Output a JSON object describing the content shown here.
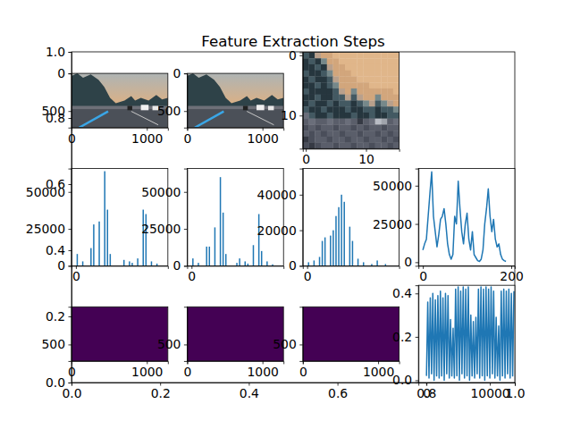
{
  "chart_data": [
    {
      "type": "axes",
      "title": "Feature Extraction Steps",
      "xlim": [
        0,
        1
      ],
      "ylim": [
        0,
        1
      ],
      "xticks": [
        {
          "value": 0,
          "label": "0.0"
        },
        {
          "value": 0.2,
          "label": "0.2"
        },
        {
          "value": 0.4,
          "label": "0.4"
        },
        {
          "value": 0.6,
          "label": "0.6"
        },
        {
          "value": 0.8,
          "label": "0.8"
        },
        {
          "value": 1,
          "label": "1.0"
        }
      ],
      "yticks": [
        {
          "value": 0,
          "label": "0.0"
        },
        {
          "value": 0.2,
          "label": "0.2"
        },
        {
          "value": 0.4,
          "label": "0.4"
        },
        {
          "value": 0.6,
          "label": "0.6"
        },
        {
          "value": 0.8,
          "label": "0.8"
        },
        {
          "value": 1,
          "label": "1.0"
        }
      ]
    },
    {
      "type": "image",
      "xlim": [
        -0.5,
        1279.5
      ],
      "ylim": [
        719.5,
        -0.5
      ],
      "xticks": [
        0,
        1000
      ],
      "yticks": [
        0,
        500
      ]
    },
    {
      "type": "image",
      "xlim": [
        -0.5,
        1279.5
      ],
      "ylim": [
        719.5,
        -0.5
      ],
      "xticks": [
        0,
        1000
      ],
      "yticks": [
        0,
        500
      ]
    },
    {
      "type": "heatmap",
      "xlim": [
        -0.5,
        15.5
      ],
      "ylim": [
        15.5,
        -0.5
      ],
      "xticks": [
        0,
        10
      ],
      "yticks": [
        0,
        10
      ],
      "cells": [
        [
          "#435962",
          "#26363e",
          "#b8a08c",
          "#d2a67c",
          "#d2a67c",
          "#e0b68a",
          "#e0b68a",
          "#e0b68a",
          "#e0b68a",
          "#e0b68a",
          "#e0b68a",
          "#e0b68a",
          "#e0b68a",
          "#e0b68a",
          "#e0b68a",
          "#e0b68a"
        ],
        [
          "#26363e",
          "#435962",
          "#26363e",
          "#76888a",
          "#d2a67c",
          "#d2a67c",
          "#e0b68a",
          "#e0b68a",
          "#e0b68a",
          "#e0b68a",
          "#e0b68a",
          "#e0b68a",
          "#e0b68a",
          "#e0b68a",
          "#e0b68a",
          "#e0b68a"
        ],
        [
          "#26363e",
          "#26363e",
          "#435962",
          "#26363e",
          "#b8a08c",
          "#d2a67c",
          "#d2a67c",
          "#e0b68a",
          "#e0b68a",
          "#e0b68a",
          "#e0b68a",
          "#e0b68a",
          "#e0b68a",
          "#e0b68a",
          "#e0b68a",
          "#e0b68a"
        ],
        [
          "#435962",
          "#26363e",
          "#26363e",
          "#435962",
          "#76888a",
          "#d2a67c",
          "#d2a67c",
          "#d2a67c",
          "#e0b68a",
          "#e0b68a",
          "#e0b68a",
          "#e0b68a",
          "#e0b68a",
          "#e0b68a",
          "#e0b68a",
          "#e0b68a"
        ],
        [
          "#26363e",
          "#435962",
          "#26363e",
          "#26363e",
          "#435962",
          "#b8a08c",
          "#d2a67c",
          "#d2a67c",
          "#d2a67c",
          "#e0b68a",
          "#e0b68a",
          "#e0b68a",
          "#e0b68a",
          "#e0b68a",
          "#e0b68a",
          "#e0b68a"
        ],
        [
          "#26363e",
          "#26363e",
          "#435962",
          "#26363e",
          "#435962",
          "#76888a",
          "#d2a67c",
          "#d2a67c",
          "#d2a67c",
          "#d2a67c",
          "#d2a67c",
          "#e0b68a",
          "#e0b68a",
          "#e0b68a",
          "#e0b68a",
          "#e0b68a"
        ],
        [
          "#435962",
          "#26363e",
          "#26363e",
          "#26363e",
          "#26363e",
          "#435962",
          "#b8a08c",
          "#d2a67c",
          "#76888a",
          "#d2a67c",
          "#d2a67c",
          "#d2a67c",
          "#d2a67c",
          "#d2a67c",
          "#d2a67c",
          "#e0b68a"
        ],
        [
          "#26363e",
          "#26363e",
          "#435962",
          "#26363e",
          "#26363e",
          "#435962",
          "#435962",
          "#b8a08c",
          "#435962",
          "#b8a08c",
          "#d2a67c",
          "#d2a67c",
          "#76888a",
          "#d2a67c",
          "#d2a67c",
          "#d2a67c"
        ],
        [
          "#26363e",
          "#435962",
          "#26363e",
          "#26363e",
          "#435962",
          "#26363e",
          "#435962",
          "#435962",
          "#26363e",
          "#435962",
          "#76888a",
          "#b8a08c",
          "#435962",
          "#76888a",
          "#b8a08c",
          "#d2a67c"
        ],
        [
          "#435962",
          "#26363e",
          "#26363e",
          "#435962",
          "#26363e",
          "#26363e",
          "#26363e",
          "#435962",
          "#26363e",
          "#26363e",
          "#435962",
          "#435962",
          "#26363e",
          "#435962",
          "#435962",
          "#76888a"
        ],
        [
          "#6a6e7a",
          "#435962",
          "#26363e",
          "#26363e",
          "#435962",
          "#26363e",
          "#26363e",
          "#26363e",
          "#435962",
          "#26363e",
          "#26363e",
          "#435962",
          "#26363e",
          "#26363e",
          "#435962",
          "#435962"
        ],
        [
          "#5a5e6a",
          "#6a6e7a",
          "#5a5e6a",
          "#5a5e6a",
          "#6a6e7a",
          "#5a5e6a",
          "#5a5e6a",
          "#6a6e7a",
          "#5a5e6a",
          "#363a44",
          "#5a5e6a",
          "#6a6e7a",
          "#b8bcc4",
          "#a0a4ac",
          "#5a5e6a",
          "#6a6e7a"
        ],
        [
          "#4a4e5a",
          "#5a5e6a",
          "#4a4e5a",
          "#5a5e6a",
          "#5a5e6a",
          "#4a4e5a",
          "#5a5e6a",
          "#5a5e6a",
          "#4a4e5a",
          "#5a5e6a",
          "#4a4e5a",
          "#5a5e6a",
          "#5a5e6a",
          "#4a4e5a",
          "#5a5e6a",
          "#5a5e6a"
        ],
        [
          "#5a5e6a",
          "#4a4e5a",
          "#5a5e6a",
          "#4a4e5a",
          "#5a5e6a",
          "#5a5e6a",
          "#4a4e5a",
          "#5a5e6a",
          "#5a5e6a",
          "#4a4e5a",
          "#5a5e6a",
          "#5a5e6a",
          "#4a4e5a",
          "#5a5e6a",
          "#4a4e5a",
          "#5a5e6a"
        ],
        [
          "#363a44",
          "#4a4e5a",
          "#5a5e6a",
          "#5a5e6a",
          "#4a4e5a",
          "#5a5e6a",
          "#5a5e6a",
          "#4a4e5a",
          "#5a5e6a",
          "#5a5e6a",
          "#4a4e5a",
          "#5a5e6a",
          "#5a5e6a",
          "#4a4e5a",
          "#5a5e6a",
          "#4a4e5a"
        ],
        [
          "#4a4e5a",
          "#363a44",
          "#4a4e5a",
          "#5a5e6a",
          "#5a5e6a",
          "#4a4e5a",
          "#5a5e6a",
          "#5a5e6a",
          "#4a4e5a",
          "#5a5e6a",
          "#5a5e6a",
          "#4a4e5a",
          "#5a5e6a",
          "#5a5e6a",
          "#4a4e5a",
          "#5a5e6a"
        ]
      ]
    },
    {
      "type": "bar",
      "color": "#1f77b4",
      "x": [
        4,
        12,
        20,
        28,
        36,
        44,
        52,
        60,
        68,
        76,
        84,
        92,
        100,
        108,
        116,
        124,
        132,
        140,
        148,
        156,
        164,
        172,
        180,
        188,
        196,
        204,
        212,
        220,
        228,
        236,
        244,
        252
      ],
      "values": [
        8000,
        0,
        3000,
        0,
        0,
        12000,
        28000,
        0,
        30000,
        0,
        64000,
        38000,
        8000,
        0,
        0,
        0,
        0,
        4000,
        0,
        3000,
        2000,
        0,
        5000,
        0,
        38000,
        35000,
        0,
        3000,
        0,
        1500,
        0,
        0
      ],
      "xlim": [
        -12.75,
        267.75
      ],
      "ylim": [
        0,
        65800
      ],
      "xticks": [
        0
      ],
      "yticks": [
        0,
        25000,
        50000
      ]
    },
    {
      "type": "bar",
      "color": "#1f77b4",
      "x": [
        4,
        12,
        20,
        28,
        36,
        44,
        52,
        60,
        68,
        76,
        84,
        92,
        100,
        108,
        116,
        124,
        132,
        140,
        148,
        156,
        164,
        172,
        180,
        188,
        196,
        204,
        212,
        220,
        228,
        236,
        244,
        252
      ],
      "values": [
        5000,
        0,
        2000,
        0,
        0,
        13000,
        13000,
        0,
        26000,
        0,
        60000,
        36000,
        8000,
        0,
        0,
        0,
        2000,
        5000,
        0,
        3000,
        1500,
        0,
        14000,
        0,
        35000,
        10000,
        0,
        3000,
        0,
        1000,
        0,
        0
      ],
      "xlim": [
        -12.75,
        267.75
      ],
      "ylim": [
        0,
        65800
      ],
      "xticks": [
        0
      ],
      "yticks": [
        0,
        25000,
        50000
      ]
    },
    {
      "type": "bar",
      "color": "#1f77b4",
      "x": [
        4,
        12,
        20,
        28,
        36,
        44,
        52,
        60,
        68,
        76,
        84,
        92,
        100,
        108,
        116,
        124,
        132,
        140,
        148,
        156,
        164,
        172,
        180,
        188,
        196,
        204,
        212,
        220,
        228,
        236,
        244,
        252
      ],
      "values": [
        2000,
        0,
        3000,
        0,
        5000,
        14000,
        16000,
        0,
        17000,
        20000,
        28000,
        33000,
        40000,
        36000,
        0,
        22000,
        14000,
        0,
        4000,
        0,
        2000,
        0,
        0,
        1000,
        0,
        3000,
        0,
        0,
        1000,
        0,
        0,
        0
      ],
      "xlim": [
        -12.75,
        267.75
      ],
      "ylim": [
        0,
        54700
      ],
      "xticks": [
        0
      ],
      "yticks": [
        0,
        20000,
        40000
      ]
    },
    {
      "type": "line",
      "color": "#1f77b4",
      "x": [
        0,
        4,
        8,
        12,
        16,
        20,
        24,
        28,
        32,
        36,
        40,
        44,
        48,
        52,
        56,
        60,
        64,
        68,
        72,
        76,
        80,
        84,
        88,
        92,
        96,
        100,
        104,
        108,
        112,
        116,
        120,
        124,
        128,
        132,
        136,
        140,
        144,
        148,
        152,
        156,
        160,
        164,
        168,
        172,
        176,
        180,
        184,
        188
      ],
      "values": [
        8000,
        12000,
        15000,
        30000,
        45000,
        59000,
        30000,
        20000,
        10000,
        18000,
        28000,
        30000,
        35000,
        25000,
        12000,
        5000,
        2000,
        5000,
        30000,
        25000,
        53000,
        35000,
        20000,
        12000,
        25000,
        32000,
        15000,
        8000,
        20000,
        5000,
        3000,
        1000,
        500,
        2000,
        8000,
        25000,
        35000,
        48000,
        30000,
        20000,
        28000,
        15000,
        10000,
        12000,
        5000,
        2000,
        1000,
        500
      ],
      "xlim": [
        -10,
        208
      ],
      "ylim": [
        -2350,
        61200
      ],
      "xticks": [
        0,
        200
      ],
      "yticks": [
        0,
        25000,
        50000
      ]
    },
    {
      "type": "image",
      "color": "#440154",
      "xlim": [
        -0.5,
        1279.5
      ],
      "ylim": [
        719.5,
        -0.5
      ],
      "xticks": [
        0,
        1000
      ],
      "yticks": [
        500
      ]
    },
    {
      "type": "image",
      "color": "#440154",
      "xlim": [
        -0.5,
        1279.5
      ],
      "ylim": [
        719.5,
        -0.5
      ],
      "xticks": [
        0,
        1000
      ],
      "yticks": [
        500
      ]
    },
    {
      "type": "image",
      "color": "#440154",
      "xlim": [
        -0.5,
        1279.5
      ],
      "ylim": [
        719.5,
        -0.5
      ],
      "xticks": [
        0,
        1000
      ],
      "yticks": [
        500
      ]
    },
    {
      "type": "line",
      "color": "#1f77b4",
      "x": [
        0,
        200,
        400,
        600,
        800,
        1000,
        1200,
        1400,
        1600,
        1800,
        2000,
        2200,
        2400,
        2600,
        2800,
        3000,
        3200,
        3400,
        3600,
        3800,
        4000,
        4200,
        4400,
        4600,
        4800,
        5000,
        5200,
        5400,
        5600,
        5800,
        6000,
        6200,
        6400,
        6600,
        6800,
        7000,
        7200,
        7400,
        7600,
        7800,
        8000,
        8200,
        8400,
        8600,
        8800,
        9000,
        9200,
        9400,
        9600,
        9800,
        10000,
        10200,
        10400,
        10600,
        10800,
        11000,
        11200,
        11400,
        11600,
        11800,
        12000,
        12200,
        12400,
        12600,
        12800,
        13000,
        13200,
        13400,
        13600,
        13800
      ],
      "values": [
        0.02,
        0.36,
        0.01,
        0.38,
        0.03,
        0.4,
        0,
        0.37,
        0.02,
        0.39,
        0.01,
        0.41,
        0.02,
        0.38,
        0,
        0.4,
        0.03,
        0.39,
        0.01,
        0.28,
        0.02,
        0.24,
        0.01,
        0.42,
        0.02,
        0.43,
        0,
        0.41,
        0.03,
        0.43,
        0.01,
        0.42,
        0.02,
        0.43,
        0,
        0.3,
        0.02,
        0.27,
        0.01,
        0.29,
        0.03,
        0.42,
        0.01,
        0.43,
        0.02,
        0.42,
        0,
        0.43,
        0.02,
        0.42,
        0.01,
        0.43,
        0.03,
        0.41,
        0.01,
        0.29,
        0.02,
        0.25,
        0,
        0.41,
        0.02,
        0.42,
        0.01,
        0.41,
        0.03,
        0.42,
        0.01,
        0.4,
        0.02,
        0.41
      ],
      "xlim": [
        -1270,
        13940
      ],
      "ylim": [
        -0.0104,
        0.4375
      ],
      "xticks": [
        0,
        10000
      ],
      "yticks": [
        {
          "value": 0,
          "label": "0.0"
        },
        {
          "value": 0.2,
          "label": "0.2"
        },
        {
          "value": 0.4,
          "label": "0.4"
        }
      ]
    }
  ]
}
